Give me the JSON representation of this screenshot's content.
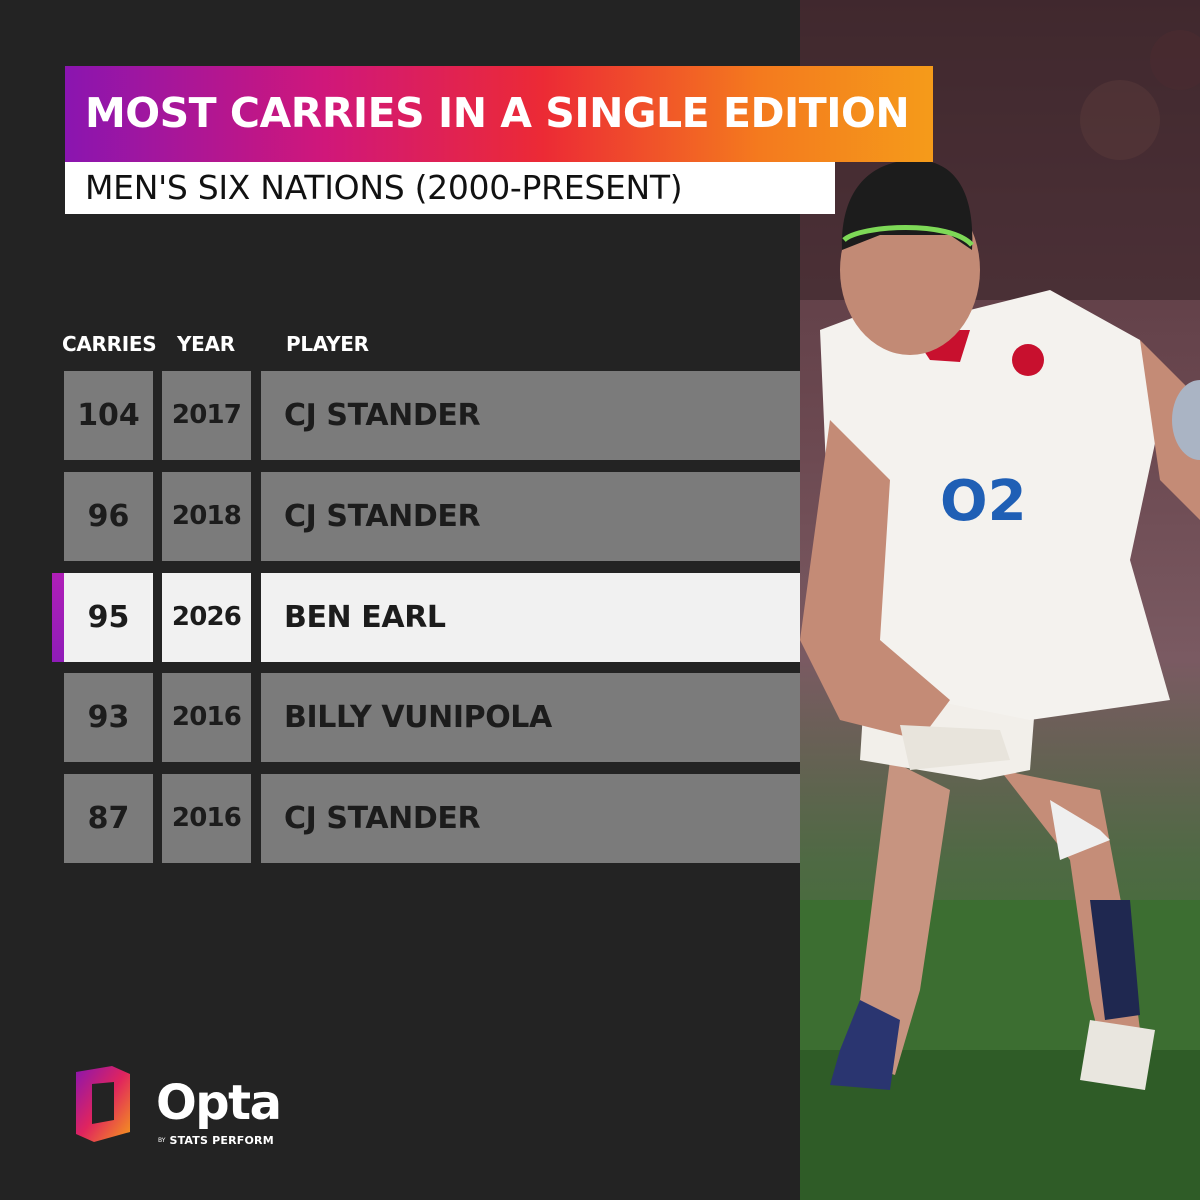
{
  "header": {
    "title": "MOST CARRIES IN A SINGLE EDITION",
    "subtitle": "MEN'S SIX NATIONS (2000-PRESENT)"
  },
  "columns": {
    "carries": "CARRIES",
    "year": "YEAR",
    "player": "PLAYER"
  },
  "rows": [
    {
      "carries": "104",
      "year": "2017",
      "player": "CJ STANDER",
      "highlight": false
    },
    {
      "carries": "96",
      "year": "2018",
      "player": "CJ STANDER",
      "highlight": false
    },
    {
      "carries": "95",
      "year": "2026",
      "player": "BEN EARL",
      "highlight": true
    },
    {
      "carries": "93",
      "year": "2016",
      "player": "BILLY VUNIPOLA",
      "highlight": false
    },
    {
      "carries": "87",
      "year": "2016",
      "player": "CJ STANDER",
      "highlight": false
    }
  ],
  "chart_data": {
    "type": "table",
    "title": "MOST CARRIES IN A SINGLE EDITION",
    "subtitle": "MEN'S SIX NATIONS (2000-PRESENT)",
    "columns": [
      "CARRIES",
      "YEAR",
      "PLAYER"
    ],
    "rows": [
      [
        104,
        2017,
        "CJ STANDER"
      ],
      [
        96,
        2018,
        "CJ STANDER"
      ],
      [
        95,
        2026,
        "BEN EARL"
      ],
      [
        93,
        2016,
        "BILLY VUNIPOLA"
      ],
      [
        87,
        2016,
        "CJ STANDER"
      ]
    ],
    "highlighted_row": 2
  },
  "brand": {
    "name": "Opta",
    "by": "BY",
    "tagline": "STATS PERFORM"
  },
  "photo": {
    "sponsor_logo": "O2",
    "description_icon": "rugby-player-photo"
  },
  "colors": {
    "background": "#232323",
    "row": "#7b7b7b",
    "row_highlight": "#f1f1f1",
    "accent_purple": "#8a15b0",
    "accent_orange": "#f59b1a"
  }
}
